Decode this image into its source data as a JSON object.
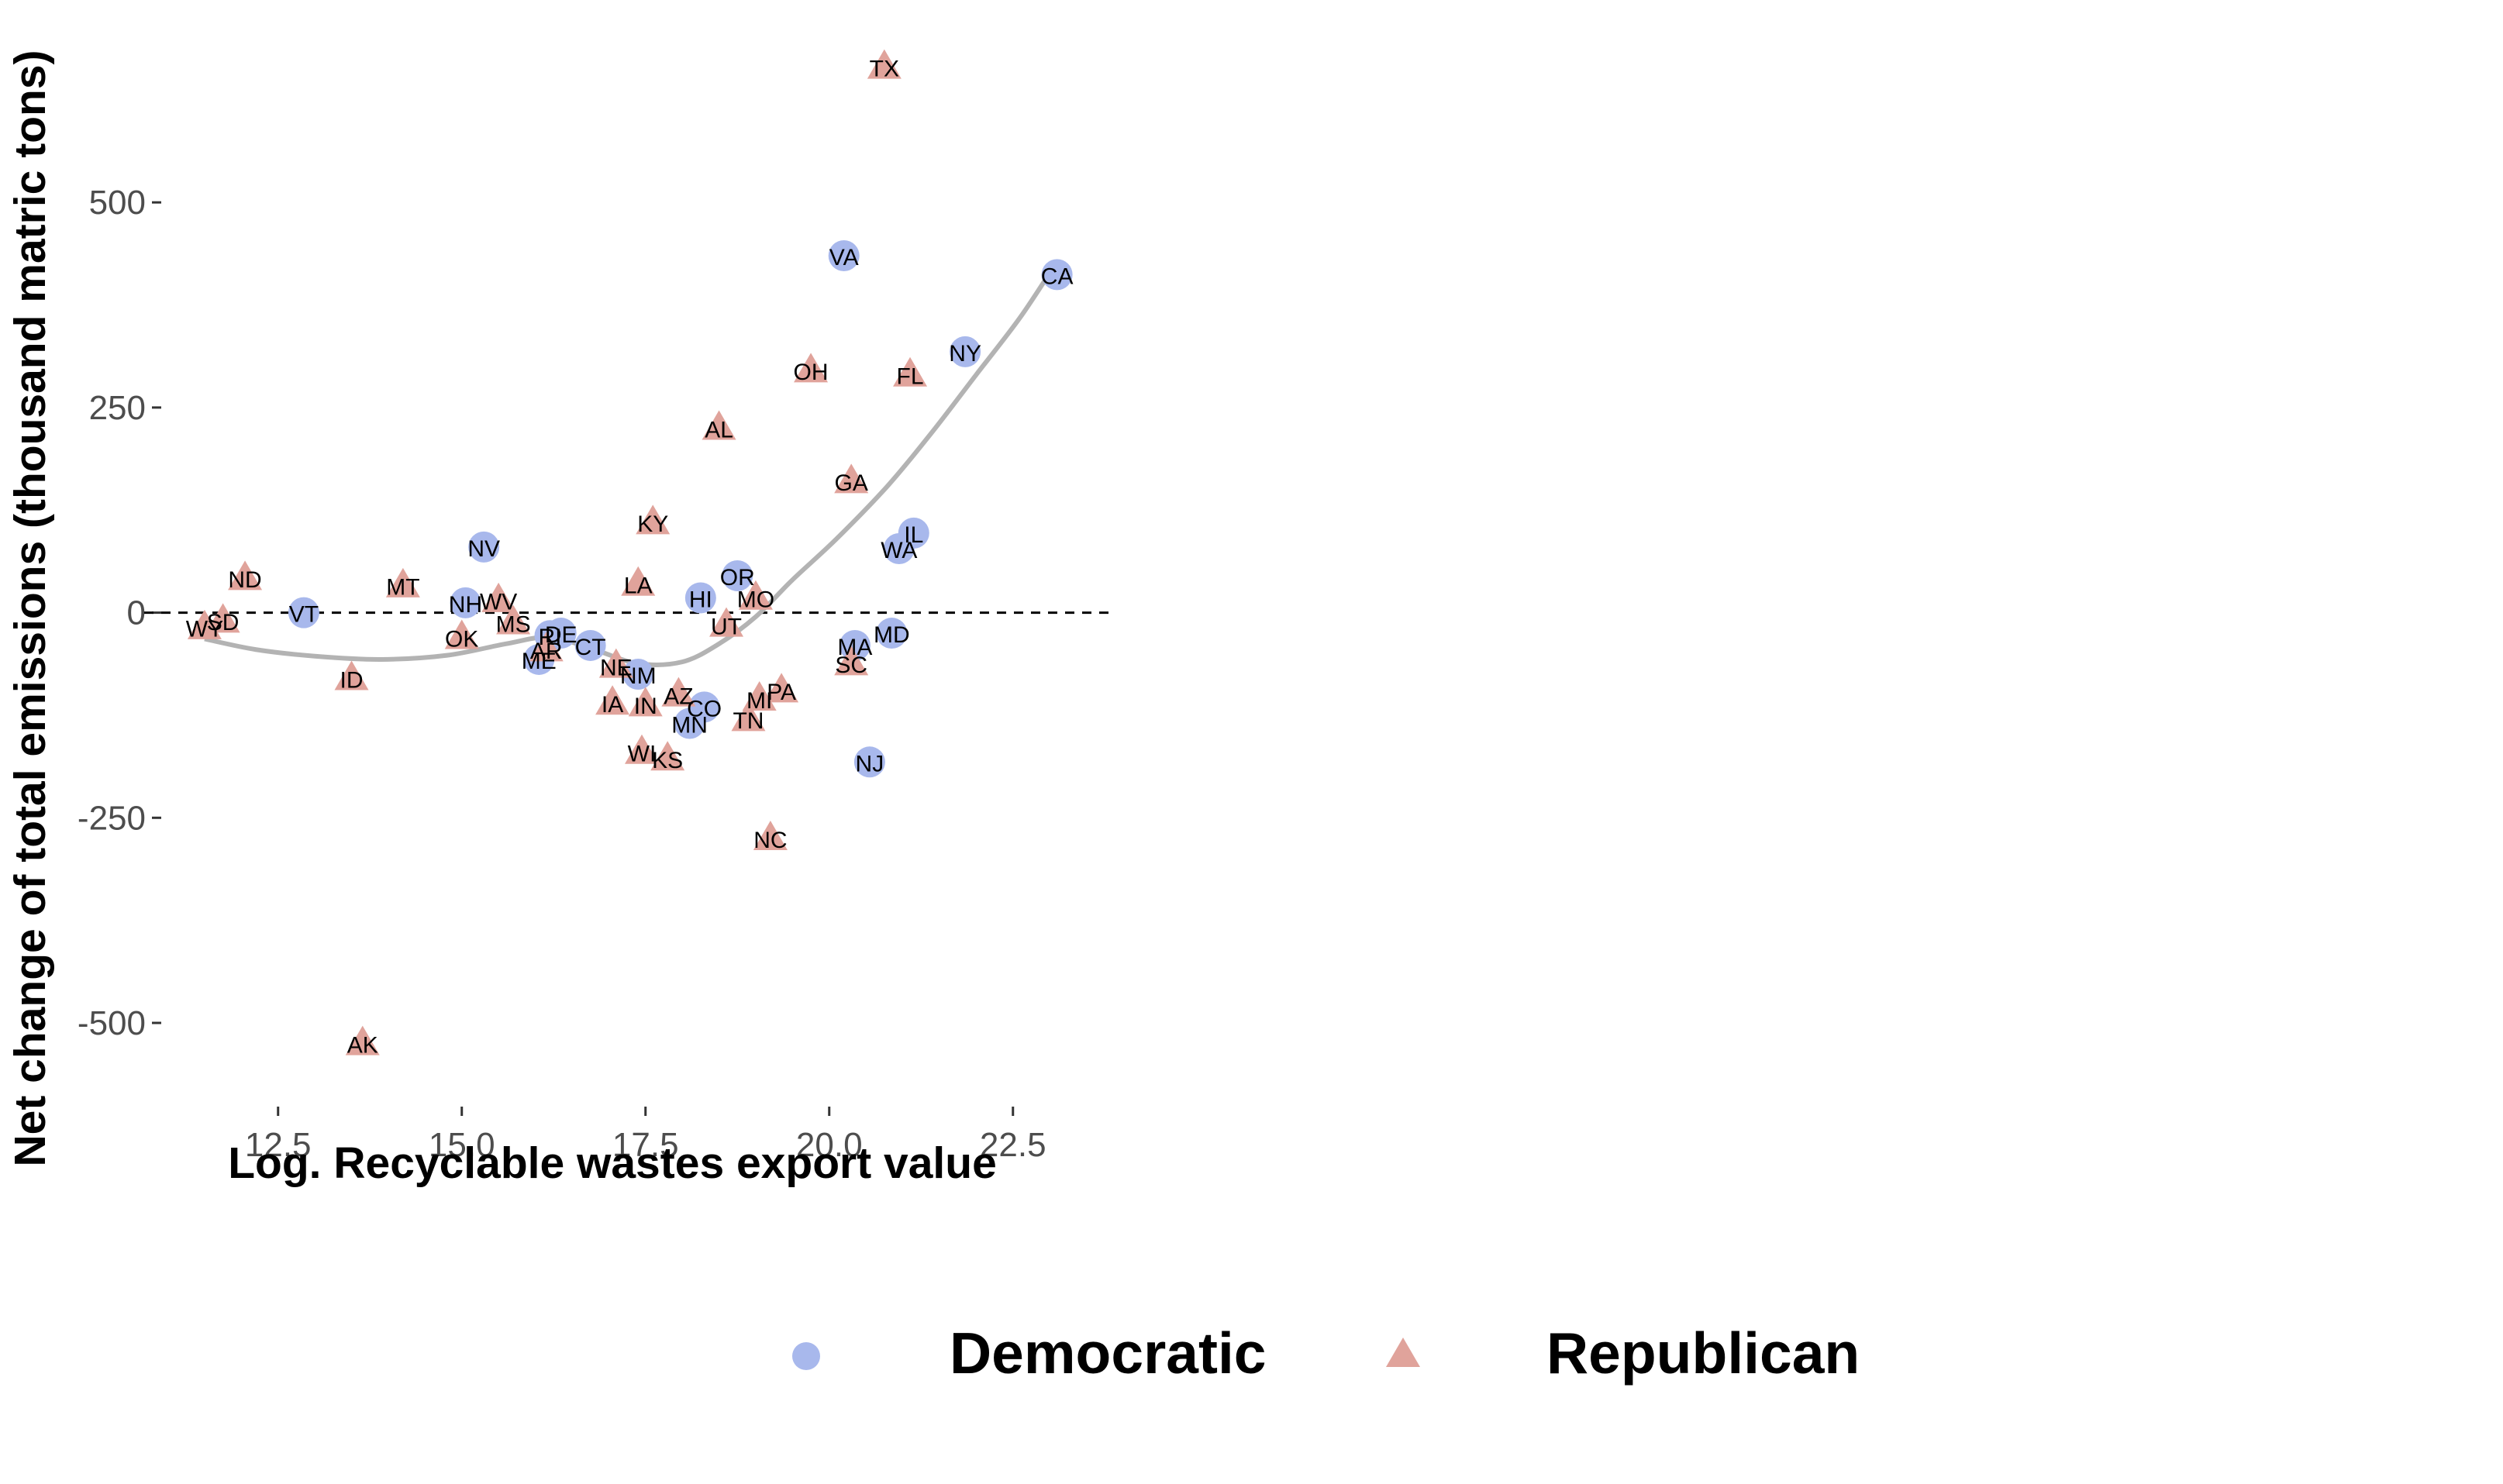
{
  "chart_data": {
    "type": "scatter",
    "title": "",
    "xlabel": "Log. Recyclable wastes export value",
    "ylabel": "Net change of total emissions (thousand matric tons)",
    "xlim": [
      11.1,
      23.8
    ],
    "ylim": [
      -585,
      690
    ],
    "x_ticks": [
      12.5,
      15.0,
      17.5,
      20.0,
      22.5
    ],
    "x_tick_labels": [
      "12.5",
      "15.0",
      "17.5",
      "20.0",
      "22.5"
    ],
    "y_ticks": [
      500,
      250,
      0,
      -250,
      -500
    ],
    "y_tick_labels": [
      "500",
      "250",
      "0",
      "-250",
      "-500"
    ],
    "grid": false,
    "reference_line": {
      "y": 0,
      "style": "dashed"
    },
    "trend_line": {
      "style": "smooth",
      "color": "#b3b3b3",
      "points": [
        [
          11.5,
          -32
        ],
        [
          12.2,
          -45
        ],
        [
          13.0,
          -53
        ],
        [
          13.9,
          -57
        ],
        [
          14.8,
          -52
        ],
        [
          15.6,
          -38
        ],
        [
          16.2,
          -30
        ],
        [
          16.8,
          -45
        ],
        [
          17.4,
          -62
        ],
        [
          18.0,
          -60
        ],
        [
          18.5,
          -38
        ],
        [
          19.0,
          -5
        ],
        [
          19.5,
          40
        ],
        [
          20.1,
          90
        ],
        [
          20.8,
          155
        ],
        [
          21.4,
          220
        ],
        [
          22.0,
          290
        ],
        [
          22.6,
          360
        ],
        [
          23.1,
          428
        ]
      ]
    },
    "legend": {
      "position": "bottom",
      "entries": [
        {
          "label": "Democratic",
          "color": "#a8b8ec",
          "shape": "circle"
        },
        {
          "label": "Republican",
          "color": "#e0a39b",
          "shape": "triangle"
        }
      ]
    },
    "series": [
      {
        "party": "Democratic",
        "color": "#a8b8ec",
        "shape": "circle",
        "points": [
          {
            "label": "VT",
            "x": 12.85,
            "y": 0
          },
          {
            "label": "NV",
            "x": 15.3,
            "y": 80
          },
          {
            "label": "NH",
            "x": 15.05,
            "y": 12
          },
          {
            "label": "ME",
            "x": 16.05,
            "y": -57
          },
          {
            "label": "RI",
            "x": 16.2,
            "y": -28
          },
          {
            "label": "DE",
            "x": 16.35,
            "y": -25
          },
          {
            "label": "CT",
            "x": 16.75,
            "y": -40
          },
          {
            "label": "NM",
            "x": 17.4,
            "y": -75
          },
          {
            "label": "HI",
            "x": 18.25,
            "y": 18
          },
          {
            "label": "OR",
            "x": 18.75,
            "y": 45
          },
          {
            "label": "CO",
            "x": 18.3,
            "y": -115
          },
          {
            "label": "MN",
            "x": 18.1,
            "y": -135
          },
          {
            "label": "VA",
            "x": 20.2,
            "y": 435
          },
          {
            "label": "NJ",
            "x": 20.55,
            "y": -182
          },
          {
            "label": "MA",
            "x": 20.35,
            "y": -40
          },
          {
            "label": "MD",
            "x": 20.85,
            "y": -25
          },
          {
            "label": "WA",
            "x": 20.95,
            "y": 78
          },
          {
            "label": "IL",
            "x": 21.15,
            "y": 97
          },
          {
            "label": "NY",
            "x": 21.85,
            "y": 318
          },
          {
            "label": "CA",
            "x": 23.1,
            "y": 412
          }
        ]
      },
      {
        "party": "Republican",
        "color": "#e0a39b",
        "shape": "triangle",
        "points": [
          {
            "label": "WY",
            "x": 11.5,
            "y": -18
          },
          {
            "label": "SD",
            "x": 11.75,
            "y": -10
          },
          {
            "label": "ND",
            "x": 12.05,
            "y": 42
          },
          {
            "label": "ID",
            "x": 13.5,
            "y": -80
          },
          {
            "label": "AK",
            "x": 13.65,
            "y": -525
          },
          {
            "label": "MT",
            "x": 14.2,
            "y": 33
          },
          {
            "label": "OK",
            "x": 15.0,
            "y": -30
          },
          {
            "label": "WV",
            "x": 15.5,
            "y": 15
          },
          {
            "label": "MS",
            "x": 15.7,
            "y": -12
          },
          {
            "label": "AR",
            "x": 16.15,
            "y": -45
          },
          {
            "label": "NE",
            "x": 17.1,
            "y": -65
          },
          {
            "label": "IA",
            "x": 17.05,
            "y": -110
          },
          {
            "label": "IN",
            "x": 17.5,
            "y": -112
          },
          {
            "label": "WI",
            "x": 17.45,
            "y": -170
          },
          {
            "label": "KS",
            "x": 17.8,
            "y": -178
          },
          {
            "label": "LA",
            "x": 17.4,
            "y": 35
          },
          {
            "label": "KY",
            "x": 17.6,
            "y": 110
          },
          {
            "label": "AZ",
            "x": 17.95,
            "y": -100
          },
          {
            "label": "AL",
            "x": 18.5,
            "y": 225
          },
          {
            "label": "UT",
            "x": 18.6,
            "y": -15
          },
          {
            "label": "MO",
            "x": 19.0,
            "y": 18
          },
          {
            "label": "TN",
            "x": 18.9,
            "y": -130
          },
          {
            "label": "MI",
            "x": 19.05,
            "y": -105
          },
          {
            "label": "PA",
            "x": 19.35,
            "y": -95
          },
          {
            "label": "NC",
            "x": 19.2,
            "y": -275
          },
          {
            "label": "OH",
            "x": 19.75,
            "y": 295
          },
          {
            "label": "GA",
            "x": 20.3,
            "y": 160
          },
          {
            "label": "SC",
            "x": 20.3,
            "y": -62
          },
          {
            "label": "TX",
            "x": 20.75,
            "y": 665
          },
          {
            "label": "FL",
            "x": 21.1,
            "y": 290
          }
        ]
      }
    ]
  }
}
